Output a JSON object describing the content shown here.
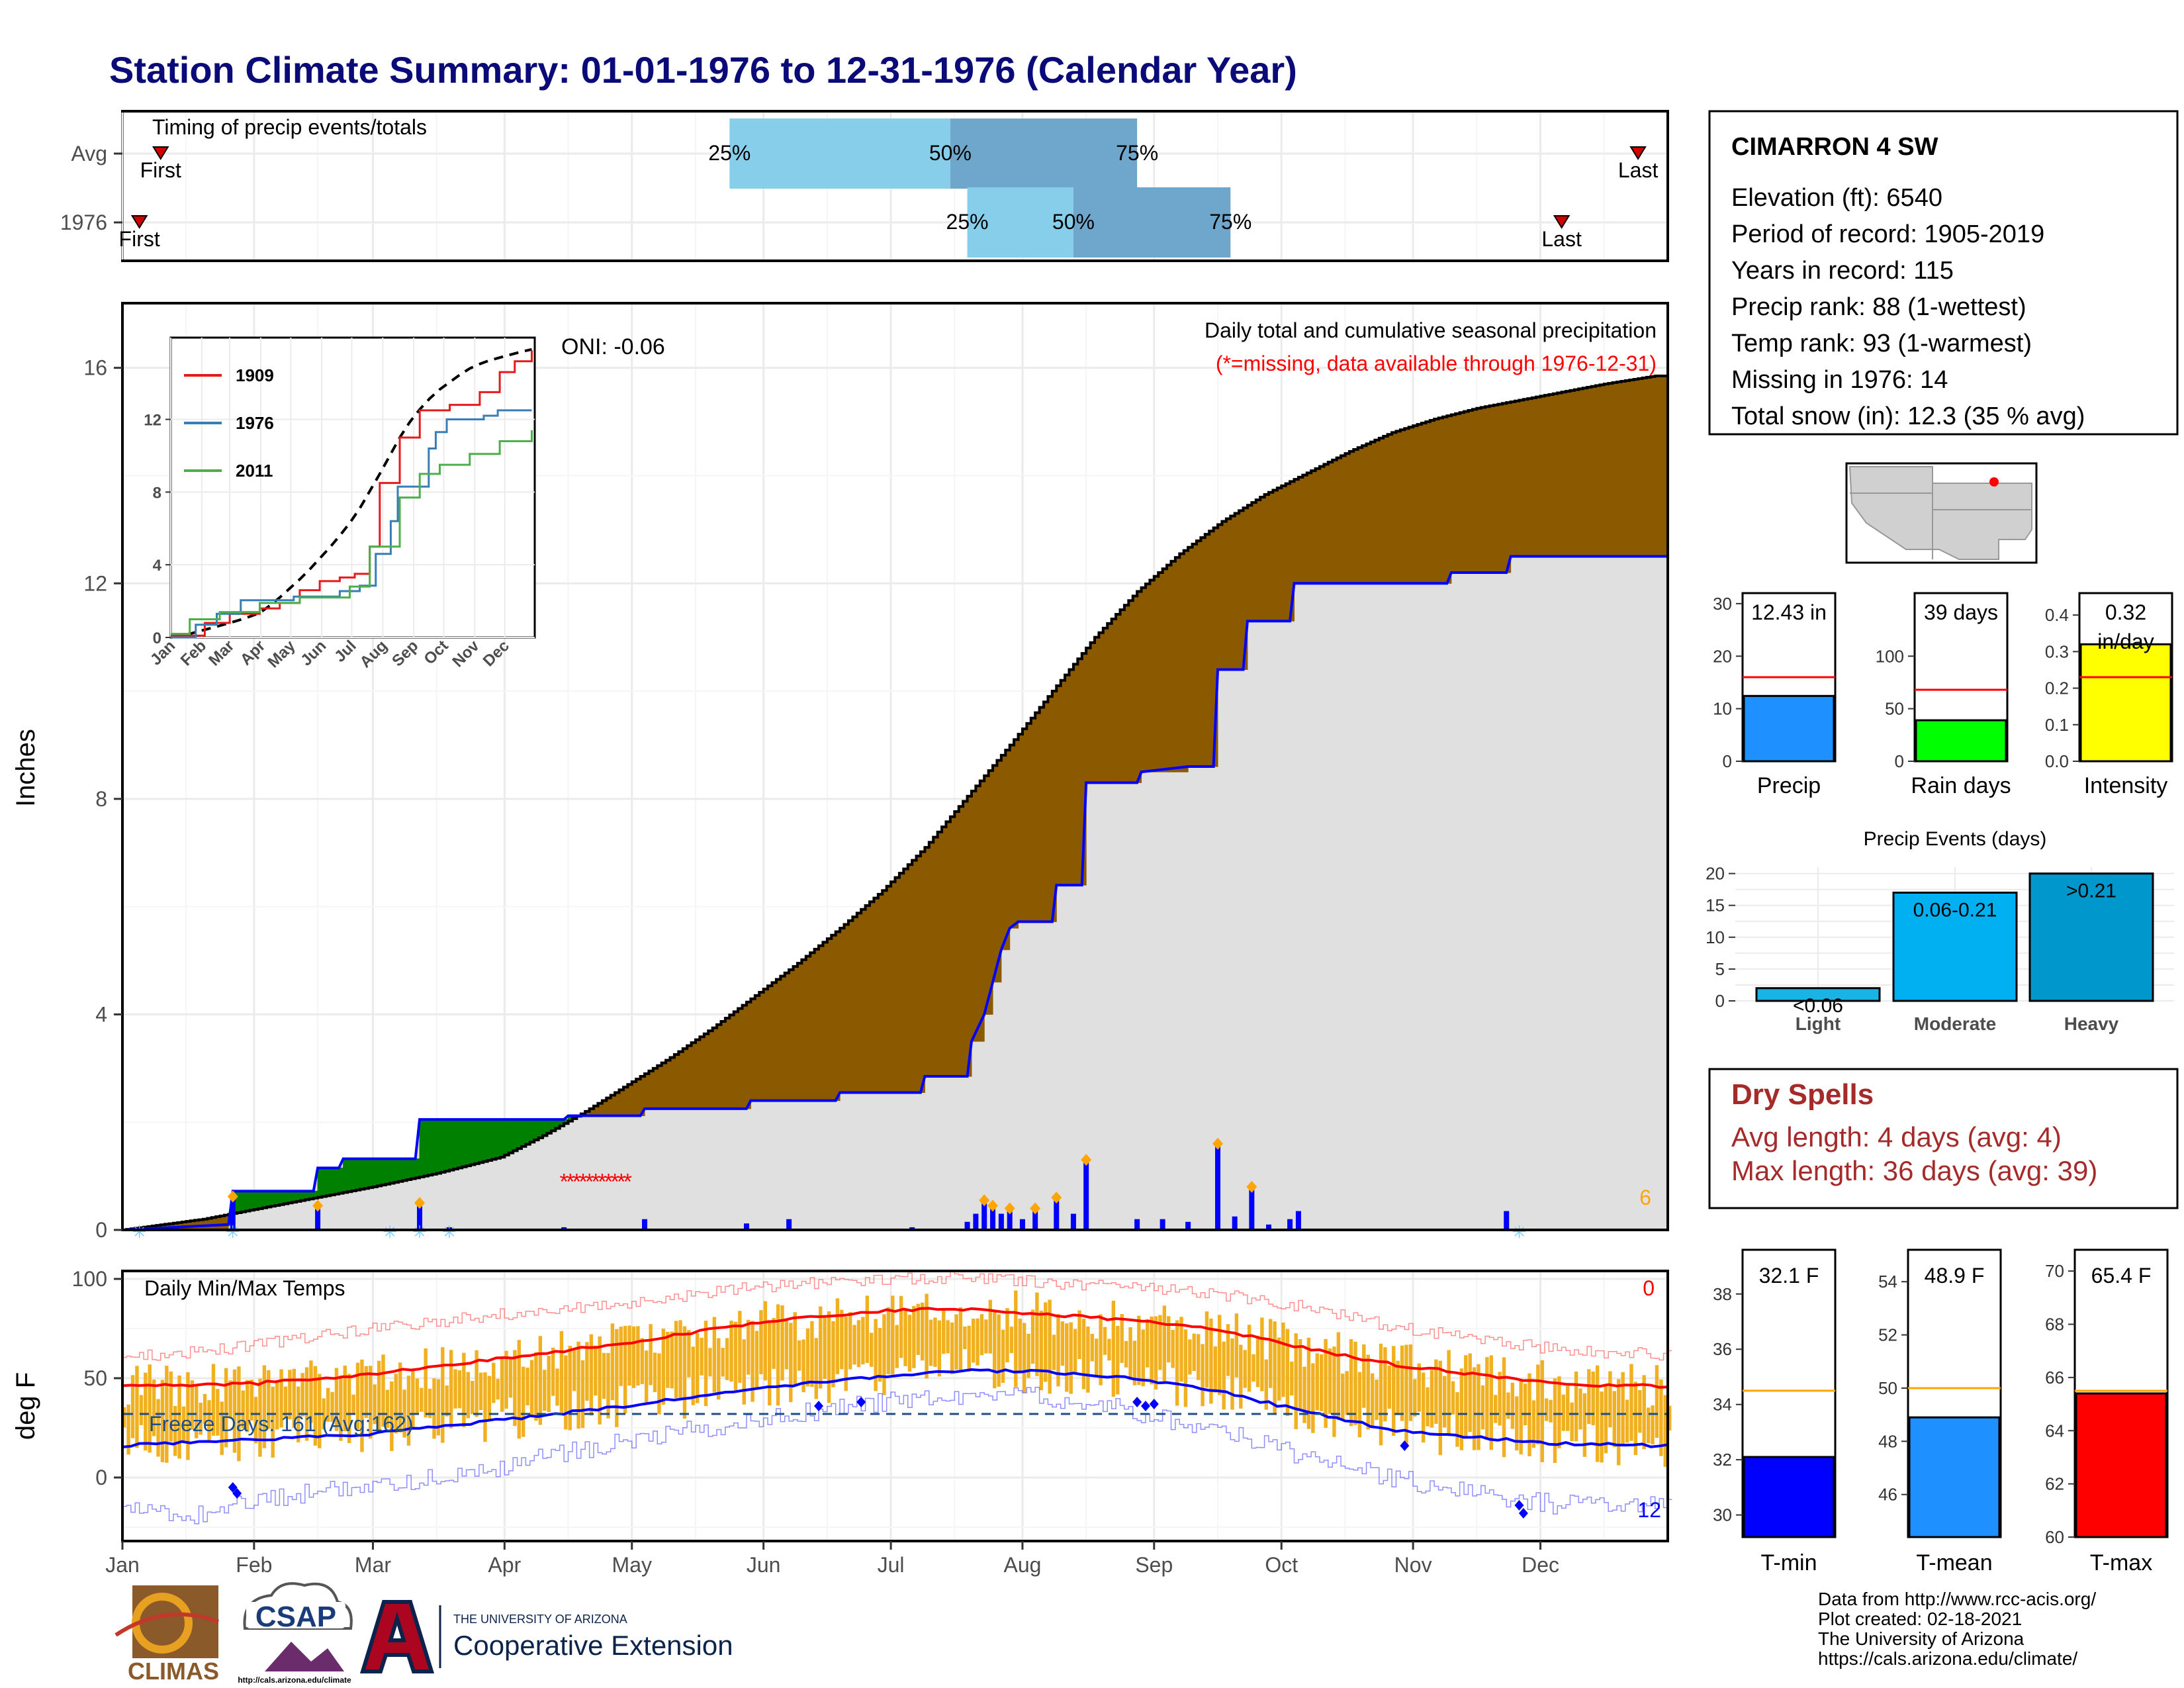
{
  "title": "Station Climate Summary: 01-01-1976 to 12-31-1976 (Calendar Year)",
  "colors": {
    "title": "#0a0a78",
    "cum_fill": "#8b5a00",
    "cum_wet": "#008000",
    "avg_fill": "#e0e0e0",
    "blue": "#0000ff",
    "red": "#ff0000",
    "temp_bar": "#f0b020",
    "p25": "#87ceeb",
    "p50": "#6fa6cc",
    "precip_bar": "#1e90ff",
    "rain_bar": "#00ff00",
    "intens_bar": "#ffff00",
    "ev_light": "#1ab3e6",
    "ev_mod": "#00b0f0",
    "ev_heavy": "#0098cc",
    "tmin_bar": "#0000ff",
    "tmean_bar": "#1e90ff",
    "tmax_bar": "#ff0000",
    "dry_text": "#a52a2a",
    "orange": "#ffa500",
    "darkred": "#cc0000"
  },
  "timing": {
    "label": "Timing of precip events/totals",
    "rows": [
      {
        "name": "Avg",
        "first_label": "First",
        "last_label": "Last",
        "first_day": 10,
        "last_day": 358,
        "q25": 144,
        "q50": 196,
        "q75": 240,
        "p25_label": "25%",
        "p50_label": "50%",
        "p75_label": "75%"
      },
      {
        "name": "1976",
        "first_label": "First",
        "last_label": "Last",
        "first_day": 5,
        "last_day": 340,
        "q25": 200,
        "q50": 225,
        "q75": 262,
        "p25_label": "25%",
        "p50_label": "50%",
        "p75_label": "75%"
      }
    ]
  },
  "precip_panel": {
    "ylabel": "Inches",
    "yticks": [
      0,
      4,
      8,
      12,
      16
    ],
    "ylim": [
      0,
      17.2
    ],
    "title_line1": "Daily total and cumulative seasonal precipitation",
    "title_line2": "(*=missing, data available through 1976-12-31)",
    "oni": "ONI: -0.06",
    "count_label": "6",
    "avg_cum": [
      [
        1,
        0
      ],
      [
        20,
        0.2
      ],
      [
        40,
        0.5
      ],
      [
        60,
        0.8
      ],
      [
        75,
        1.05
      ],
      [
        90,
        1.35
      ],
      [
        100,
        1.75
      ],
      [
        110,
        2.2
      ],
      [
        120,
        2.7
      ],
      [
        130,
        3.2
      ],
      [
        140,
        3.75
      ],
      [
        150,
        4.35
      ],
      [
        160,
        4.95
      ],
      [
        170,
        5.6
      ],
      [
        180,
        6.3
      ],
      [
        190,
        7.1
      ],
      [
        200,
        8.05
      ],
      [
        210,
        9.0
      ],
      [
        220,
        10.0
      ],
      [
        230,
        11.0
      ],
      [
        240,
        11.85
      ],
      [
        250,
        12.55
      ],
      [
        260,
        13.15
      ],
      [
        270,
        13.65
      ],
      [
        280,
        14.05
      ],
      [
        290,
        14.45
      ],
      [
        300,
        14.8
      ],
      [
        310,
        15.05
      ],
      [
        320,
        15.25
      ],
      [
        330,
        15.4
      ],
      [
        340,
        15.55
      ],
      [
        350,
        15.7
      ],
      [
        362,
        15.85
      ]
    ],
    "obs_cum": [
      [
        1,
        0
      ],
      [
        26,
        0.1
      ],
      [
        27,
        0.72
      ],
      [
        46,
        0.72
      ],
      [
        47,
        1.15
      ],
      [
        52,
        1.15
      ],
      [
        53,
        1.32
      ],
      [
        70,
        1.32
      ],
      [
        71,
        2.05
      ],
      [
        105,
        2.05
      ],
      [
        106,
        2.12
      ],
      [
        123,
        2.12
      ],
      [
        124,
        2.25
      ],
      [
        148,
        2.25
      ],
      [
        149,
        2.4
      ],
      [
        169,
        2.4
      ],
      [
        170,
        2.55
      ],
      [
        189,
        2.55
      ],
      [
        190,
        2.85
      ],
      [
        200,
        2.85
      ],
      [
        201,
        3.5
      ],
      [
        204,
        4.0
      ],
      [
        206,
        4.6
      ],
      [
        208,
        5.2
      ],
      [
        210,
        5.6
      ],
      [
        212,
        5.72
      ],
      [
        220,
        5.72
      ],
      [
        221,
        6.4
      ],
      [
        227,
        6.4
      ],
      [
        228,
        8.3
      ],
      [
        240,
        8.3
      ],
      [
        241,
        8.5
      ],
      [
        252,
        8.6
      ],
      [
        258,
        8.6
      ],
      [
        259,
        10.4
      ],
      [
        265,
        10.4
      ],
      [
        266,
        11.3
      ],
      [
        276,
        11.3
      ],
      [
        277,
        12.0
      ],
      [
        313,
        12.0
      ],
      [
        314,
        12.2
      ],
      [
        327,
        12.2
      ],
      [
        328,
        12.5
      ],
      [
        362,
        12.5
      ]
    ],
    "daily": [
      [
        27,
        0.62
      ],
      [
        47,
        0.45
      ],
      [
        71,
        0.5
      ],
      [
        78,
        0.05
      ],
      [
        105,
        0.05
      ],
      [
        124,
        0.2
      ],
      [
        148,
        0.12
      ],
      [
        158,
        0.2
      ],
      [
        187,
        0.05
      ],
      [
        200,
        0.15
      ],
      [
        202,
        0.3
      ],
      [
        204,
        0.55
      ],
      [
        206,
        0.45
      ],
      [
        208,
        0.3
      ],
      [
        210,
        0.4
      ],
      [
        213,
        0.2
      ],
      [
        216,
        0.4
      ],
      [
        221,
        0.6
      ],
      [
        225,
        0.3
      ],
      [
        228,
        1.3
      ],
      [
        240,
        0.2
      ],
      [
        246,
        0.2
      ],
      [
        252,
        0.15
      ],
      [
        259,
        1.6
      ],
      [
        263,
        0.25
      ],
      [
        267,
        0.8
      ],
      [
        271,
        0.1
      ],
      [
        276,
        0.2
      ],
      [
        278,
        0.35
      ],
      [
        327,
        0.35
      ]
    ],
    "spring_missing_label": "*",
    "snow_days": [
      5,
      27,
      64,
      78,
      71,
      330
    ]
  },
  "inset": {
    "series": [
      {
        "name": "1909",
        "color": "#e41a1c",
        "points": [
          [
            1,
            0.1
          ],
          [
            35,
            0.8
          ],
          [
            60,
            1.3
          ],
          [
            90,
            1.6
          ],
          [
            110,
            1.9
          ],
          [
            130,
            2.6
          ],
          [
            150,
            3.1
          ],
          [
            170,
            3.3
          ],
          [
            185,
            3.5
          ],
          [
            200,
            5.0
          ],
          [
            210,
            8.5
          ],
          [
            230,
            11.0
          ],
          [
            250,
            12.5
          ],
          [
            280,
            12.8
          ],
          [
            310,
            13.5
          ],
          [
            330,
            14.6
          ],
          [
            345,
            15.2
          ],
          [
            362,
            15.8
          ]
        ]
      },
      {
        "name": "1976",
        "color": "#377eb8",
        "points": [
          [
            1,
            0
          ],
          [
            26,
            0.7
          ],
          [
            47,
            1.3
          ],
          [
            71,
            2.05
          ],
          [
            124,
            2.25
          ],
          [
            170,
            2.55
          ],
          [
            190,
            2.85
          ],
          [
            206,
            4.6
          ],
          [
            221,
            6.4
          ],
          [
            228,
            8.3
          ],
          [
            259,
            10.4
          ],
          [
            266,
            11.3
          ],
          [
            277,
            12.0
          ],
          [
            314,
            12.2
          ],
          [
            328,
            12.5
          ],
          [
            362,
            12.5
          ]
        ]
      },
      {
        "name": "2011",
        "color": "#4daf4a",
        "points": [
          [
            1,
            0.2
          ],
          [
            20,
            1.0
          ],
          [
            50,
            1.4
          ],
          [
            90,
            1.9
          ],
          [
            130,
            2.2
          ],
          [
            160,
            2.2
          ],
          [
            180,
            2.8
          ],
          [
            200,
            5.0
          ],
          [
            230,
            7.7
          ],
          [
            250,
            9.0
          ],
          [
            270,
            9.5
          ],
          [
            300,
            10.1
          ],
          [
            330,
            10.8
          ],
          [
            362,
            11.4
          ]
        ]
      }
    ],
    "yticks": [
      0,
      4,
      8,
      12
    ],
    "months": [
      "Jan",
      "Feb",
      "Mar",
      "Apr",
      "May",
      "Jun",
      "Jul",
      "Aug",
      "Sep",
      "Oct",
      "Nov",
      "Dec"
    ]
  },
  "temp_panel": {
    "ylabel": "deg F",
    "yticks": [
      0,
      50,
      100
    ],
    "ylim": [
      -32,
      104
    ],
    "title": "Daily Min/Max Temps",
    "freeze_label": "Freeze Days: 161 (Avg:162)",
    "freeze_line": 32,
    "count_max": "0",
    "count_min": "12",
    "avg_max": [
      [
        1,
        46
      ],
      [
        30,
        47
      ],
      [
        60,
        52
      ],
      [
        90,
        60
      ],
      [
        120,
        68
      ],
      [
        150,
        78
      ],
      [
        180,
        84
      ],
      [
        200,
        85
      ],
      [
        220,
        82
      ],
      [
        240,
        79
      ],
      [
        260,
        74
      ],
      [
        280,
        65
      ],
      [
        300,
        57
      ],
      [
        320,
        52
      ],
      [
        340,
        47
      ],
      [
        362,
        46
      ]
    ],
    "avg_min": [
      [
        1,
        16
      ],
      [
        30,
        19
      ],
      [
        60,
        22
      ],
      [
        90,
        29
      ],
      [
        120,
        36
      ],
      [
        150,
        45
      ],
      [
        180,
        51
      ],
      [
        200,
        54
      ],
      [
        220,
        53
      ],
      [
        240,
        50
      ],
      [
        260,
        43
      ],
      [
        280,
        33
      ],
      [
        300,
        24
      ],
      [
        320,
        20
      ],
      [
        340,
        17
      ],
      [
        362,
        16
      ]
    ],
    "rec_max": [
      [
        1,
        60
      ],
      [
        30,
        66
      ],
      [
        60,
        75
      ],
      [
        90,
        82
      ],
      [
        120,
        88
      ],
      [
        150,
        96
      ],
      [
        180,
        100
      ],
      [
        200,
        101
      ],
      [
        220,
        98
      ],
      [
        240,
        96
      ],
      [
        260,
        92
      ],
      [
        280,
        86
      ],
      [
        300,
        76
      ],
      [
        320,
        70
      ],
      [
        340,
        64
      ],
      [
        362,
        62
      ]
    ],
    "rec_min": [
      [
        1,
        -17
      ],
      [
        15,
        -20
      ],
      [
        30,
        -12
      ],
      [
        45,
        -8
      ],
      [
        60,
        -3
      ],
      [
        80,
        1
      ],
      [
        100,
        10
      ],
      [
        120,
        19
      ],
      [
        150,
        29
      ],
      [
        180,
        38
      ],
      [
        200,
        42
      ],
      [
        220,
        40
      ],
      [
        240,
        33
      ],
      [
        260,
        23
      ],
      [
        280,
        10
      ],
      [
        300,
        0
      ],
      [
        320,
        -8
      ],
      [
        340,
        -14
      ],
      [
        362,
        -12
      ]
    ],
    "min_records": [
      [
        27,
        -5
      ],
      [
        28,
        -8
      ],
      [
        165,
        36
      ],
      [
        175,
        38
      ],
      [
        240,
        38
      ],
      [
        242,
        36
      ],
      [
        244,
        37
      ],
      [
        303,
        16
      ],
      [
        330,
        -14
      ],
      [
        331,
        -18
      ]
    ]
  },
  "xaxis": {
    "months": [
      "Jan",
      "Feb",
      "Mar",
      "Apr",
      "May",
      "Jun",
      "Jul",
      "Aug",
      "Sep",
      "Oct",
      "Nov",
      "Dec"
    ],
    "month_starts": [
      1,
      32,
      60,
      91,
      121,
      152,
      182,
      213,
      244,
      274,
      305,
      335
    ]
  },
  "station": {
    "name": "CIMARRON 4 SW",
    "lines": [
      "Elevation (ft): 6540",
      "Period of record: 1905-2019",
      "Years in record: 115",
      "Precip rank: 88 (1-wettest)",
      "Temp rank: 93 (1-warmest)",
      "Missing in 1976: 14",
      "Total snow (in): 12.3 (35 % avg)"
    ]
  },
  "summary_bars": [
    {
      "label": "Precip",
      "value_label": "12.43 in",
      "value": 12.43,
      "avg": 16.0,
      "ymax": 32,
      "yticks": [
        0,
        10,
        20,
        30
      ],
      "color_key": "precip_bar"
    },
    {
      "label": "Rain days",
      "value_label": "39 days",
      "value": 39,
      "avg": 68,
      "ymax": 160,
      "yticks": [
        0,
        50,
        100
      ],
      "color_key": "rain_bar"
    },
    {
      "label": "Intensity",
      "value_label": "0.32",
      "value_label2": "in/day",
      "value": 0.32,
      "avg": 0.23,
      "ymax": 0.46,
      "yticks": [
        0.0,
        0.1,
        0.2,
        0.3,
        0.4
      ],
      "color_key": "intens_bar"
    }
  ],
  "events": {
    "title": "Precip Events (days)",
    "categories": [
      "Light",
      "Moderate",
      "Heavy"
    ],
    "values": [
      2,
      17,
      20
    ],
    "labels": [
      "<0.06",
      "0.06-0.21",
      ">0.21"
    ],
    "yticks": [
      0,
      5,
      10,
      15,
      20
    ]
  },
  "dry_spells": {
    "title": "Dry Spells",
    "avg": "Avg length: 4 days (avg: 4)",
    "max": "Max length: 36 days (avg: 39)"
  },
  "temp_bars": [
    {
      "label": "T-min",
      "value_label": "32.1 F",
      "value": 32.1,
      "avg": 34.5,
      "ymin": 29.2,
      "ymax": 39.6,
      "yticks": [
        30,
        32,
        34,
        36,
        38
      ],
      "color_key": "tmin_bar"
    },
    {
      "label": "T-mean",
      "value_label": "48.9 F",
      "value": 48.9,
      "avg": 50.0,
      "ymin": 44.4,
      "ymax": 55.2,
      "yticks": [
        46,
        48,
        50,
        52,
        54
      ],
      "color_key": "tmean_bar"
    },
    {
      "label": "T-max",
      "value_label": "65.4 F",
      "value": 65.4,
      "avg": 65.5,
      "ymin": 60.0,
      "ymax": 70.8,
      "yticks": [
        60,
        62,
        64,
        66,
        68,
        70
      ],
      "color_key": "tmax_bar"
    }
  ],
  "footer": {
    "lines": [
      "Data from http://www.rcc-acis.org/",
      "Plot created: 02-18-2021",
      "The University of Arizona",
      "https://cals.arizona.edu/climate/"
    ],
    "climas": "CLIMAS",
    "csap": "CSAP",
    "csap_url": "http://cals.arizona.edu/climate",
    "ua_top": "THE UNIVERSITY OF ARIZONA",
    "ua_main": "Cooperative Extension"
  }
}
